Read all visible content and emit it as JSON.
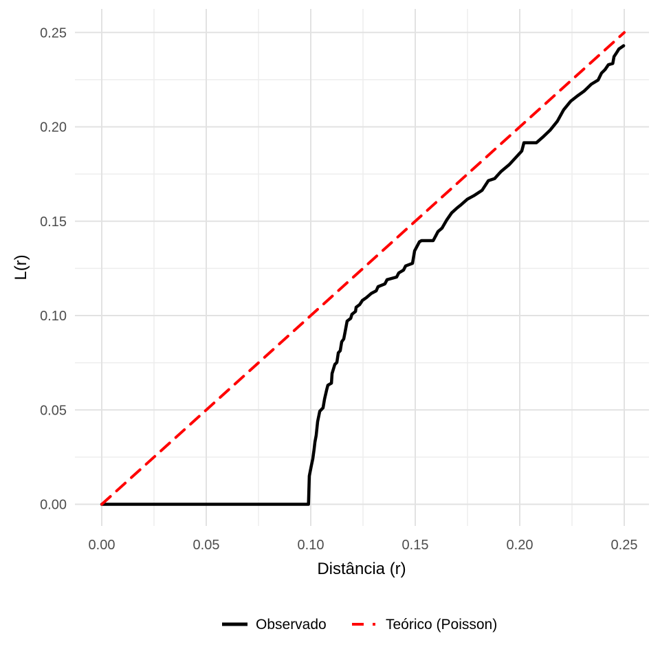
{
  "figure": {
    "background": "#FFFFFF",
    "panel_background": "#FFFFFF"
  },
  "colors": {
    "observado": "#000000",
    "teorico": "#FF0000",
    "grid_major": "#E2E2E2",
    "grid_minor": "#EDEDED",
    "tick_label": "#4D4D4D",
    "axis_title": "#000000"
  },
  "chart_data": {
    "type": "line",
    "title": "",
    "xlabel": "Distância (r)",
    "ylabel": "L(r)",
    "xlim": [
      0,
      0.25
    ],
    "ylim": [
      0,
      0.25
    ],
    "grid": "major+minor",
    "legend_position": "bottom",
    "x_ticks": [
      "0.00",
      "0.05",
      "0.10",
      "0.15",
      "0.20",
      "0.25"
    ],
    "y_ticks": [
      "0.00",
      "0.05",
      "0.10",
      "0.15",
      "0.20",
      "0.25"
    ],
    "tick_values": [
      0,
      0.05,
      0.1,
      0.15,
      0.2,
      0.25
    ],
    "minor_tick_values": [
      0.025,
      0.075,
      0.125,
      0.175,
      0.225
    ],
    "series": [
      {
        "name": "Observado",
        "color": "#000000",
        "style": "solid",
        "points": [
          [
            0.0,
            0.0
          ],
          [
            0.0989,
            0.0
          ],
          [
            0.0993,
            0.015
          ],
          [
            0.1003,
            0.0205
          ],
          [
            0.101,
            0.0241
          ],
          [
            0.1016,
            0.0292
          ],
          [
            0.102,
            0.033
          ],
          [
            0.1026,
            0.0365
          ],
          [
            0.1033,
            0.0438
          ],
          [
            0.1043,
            0.0493
          ],
          [
            0.1059,
            0.0511
          ],
          [
            0.1066,
            0.0558
          ],
          [
            0.1076,
            0.0606
          ],
          [
            0.1082,
            0.0631
          ],
          [
            0.1099,
            0.0642
          ],
          [
            0.1102,
            0.0693
          ],
          [
            0.1115,
            0.0741
          ],
          [
            0.1125,
            0.0752
          ],
          [
            0.1132,
            0.0803
          ],
          [
            0.1141,
            0.0814
          ],
          [
            0.1148,
            0.0861
          ],
          [
            0.1158,
            0.0876
          ],
          [
            0.1164,
            0.0912
          ],
          [
            0.1174,
            0.0971
          ],
          [
            0.1191,
            0.0985
          ],
          [
            0.1197,
            0.1007
          ],
          [
            0.1214,
            0.1022
          ],
          [
            0.1217,
            0.1044
          ],
          [
            0.1234,
            0.1058
          ],
          [
            0.1247,
            0.108
          ],
          [
            0.1266,
            0.1095
          ],
          [
            0.1289,
            0.1117
          ],
          [
            0.1313,
            0.1131
          ],
          [
            0.1322,
            0.1153
          ],
          [
            0.1355,
            0.1168
          ],
          [
            0.1365,
            0.119
          ],
          [
            0.1411,
            0.1204
          ],
          [
            0.1421,
            0.1226
          ],
          [
            0.1444,
            0.1241
          ],
          [
            0.1454,
            0.1263
          ],
          [
            0.1487,
            0.1277
          ],
          [
            0.1497,
            0.1343
          ],
          [
            0.152,
            0.1391
          ],
          [
            0.153,
            0.1397
          ],
          [
            0.1586,
            0.1397
          ],
          [
            0.1609,
            0.1445
          ],
          [
            0.1628,
            0.1463
          ],
          [
            0.1651,
            0.1507
          ],
          [
            0.1674,
            0.1544
          ],
          [
            0.17,
            0.157
          ],
          [
            0.172,
            0.1588
          ],
          [
            0.175,
            0.1617
          ],
          [
            0.178,
            0.1635
          ],
          [
            0.182,
            0.1664
          ],
          [
            0.185,
            0.1715
          ],
          [
            0.188,
            0.1726
          ],
          [
            0.191,
            0.1763
          ],
          [
            0.195,
            0.18
          ],
          [
            0.198,
            0.1836
          ],
          [
            0.201,
            0.1872
          ],
          [
            0.202,
            0.1916
          ],
          [
            0.208,
            0.1916
          ],
          [
            0.211,
            0.1945
          ],
          [
            0.2145,
            0.1982
          ],
          [
            0.218,
            0.203
          ],
          [
            0.221,
            0.209
          ],
          [
            0.2243,
            0.2135
          ],
          [
            0.2276,
            0.2164
          ],
          [
            0.2309,
            0.219
          ],
          [
            0.2342,
            0.2226
          ],
          [
            0.2375,
            0.2248
          ],
          [
            0.2391,
            0.2285
          ],
          [
            0.2408,
            0.2303
          ],
          [
            0.2424,
            0.2329
          ],
          [
            0.2445,
            0.2336
          ],
          [
            0.2451,
            0.2372
          ],
          [
            0.2464,
            0.2394
          ],
          [
            0.2474,
            0.2412
          ],
          [
            0.2497,
            0.243
          ]
        ]
      },
      {
        "name": "Teórico (Poisson)",
        "color": "#FF0000",
        "style": "dashed",
        "points": [
          [
            0.0,
            0.0
          ],
          [
            0.25,
            0.25
          ]
        ]
      }
    ]
  }
}
